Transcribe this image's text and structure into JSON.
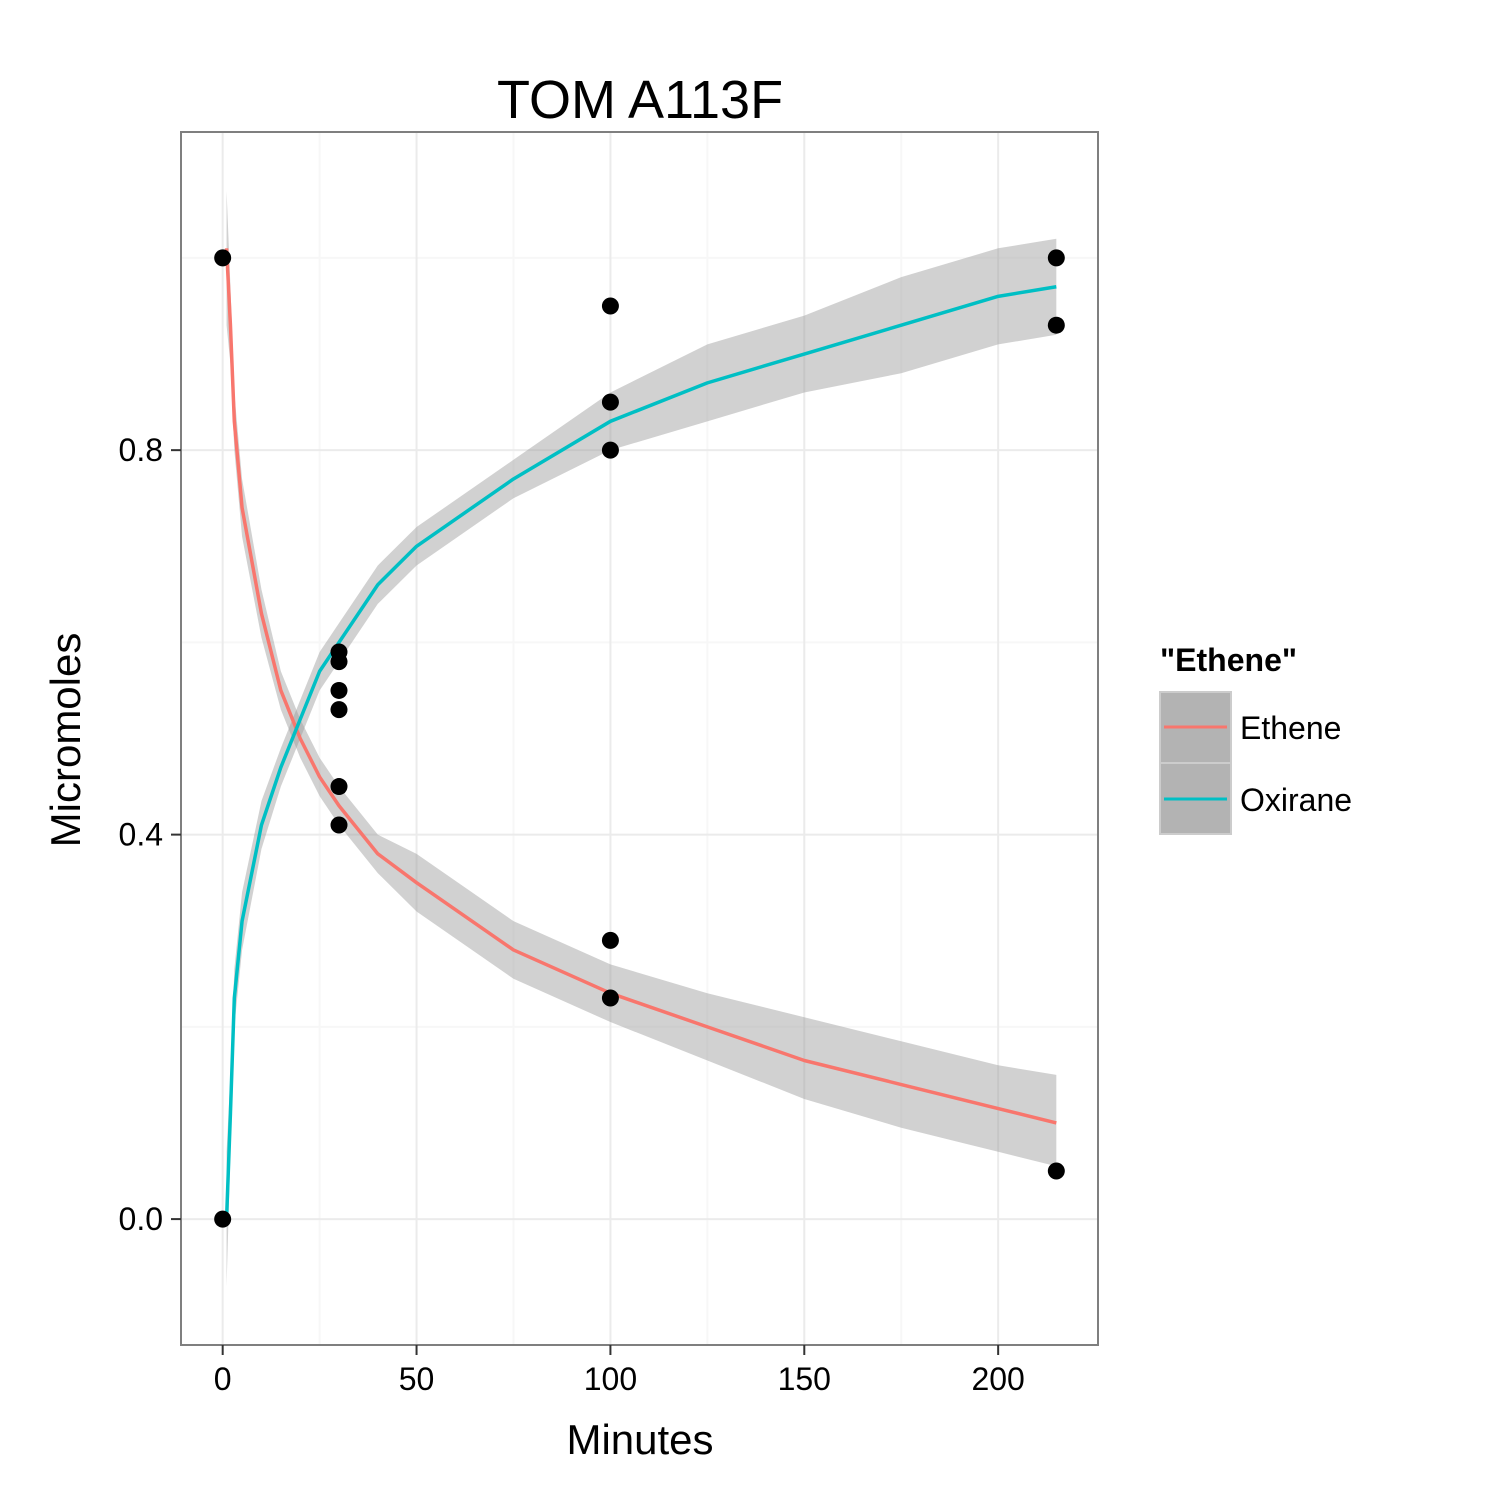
{
  "chart_data": {
    "type": "scatter",
    "title": "TOM A113F",
    "xlabel": "Minutes",
    "ylabel": "Micromoles",
    "xlim": [
      -10.75,
      225.75
    ],
    "ylim": [
      -0.131,
      1.131
    ],
    "x_ticks": [
      0,
      50,
      100,
      150,
      200
    ],
    "x_tick_labels": [
      "0",
      "50",
      "100",
      "150",
      "200"
    ],
    "y_ticks": [
      0.0,
      0.4,
      0.8
    ],
    "y_tick_labels": [
      "0.0",
      "0.4",
      "0.8"
    ],
    "grid": true,
    "points": [
      {
        "x": 0,
        "y": 1.0
      },
      {
        "x": 0,
        "y": 0.0
      },
      {
        "x": 30,
        "y": 0.59
      },
      {
        "x": 30,
        "y": 0.58
      },
      {
        "x": 30,
        "y": 0.55
      },
      {
        "x": 30,
        "y": 0.53
      },
      {
        "x": 30,
        "y": 0.45
      },
      {
        "x": 30,
        "y": 0.41
      },
      {
        "x": 100,
        "y": 0.95
      },
      {
        "x": 100,
        "y": 0.85
      },
      {
        "x": 100,
        "y": 0.8
      },
      {
        "x": 100,
        "y": 0.29
      },
      {
        "x": 100,
        "y": 0.23
      },
      {
        "x": 215,
        "y": 1.0
      },
      {
        "x": 215,
        "y": 0.93
      },
      {
        "x": 215,
        "y": 0.05
      }
    ],
    "series": [
      {
        "name": "Ethene",
        "color": "#F8766D",
        "x": [
          1,
          2,
          3,
          5,
          10,
          15,
          20,
          25,
          30,
          40,
          50,
          75,
          100,
          125,
          150,
          175,
          200,
          215
        ],
        "y": [
          1.01,
          0.93,
          0.83,
          0.74,
          0.63,
          0.55,
          0.5,
          0.46,
          0.43,
          0.38,
          0.35,
          0.28,
          0.235,
          0.2,
          0.165,
          0.14,
          0.115,
          0.1
        ],
        "band_lower": [
          0.93,
          0.89,
          0.8,
          0.71,
          0.605,
          0.53,
          0.48,
          0.44,
          0.41,
          0.36,
          0.32,
          0.25,
          0.205,
          0.165,
          0.125,
          0.095,
          0.07,
          0.055
        ],
        "band_upper": [
          1.07,
          0.97,
          0.86,
          0.77,
          0.655,
          0.57,
          0.52,
          0.48,
          0.45,
          0.4,
          0.38,
          0.31,
          0.265,
          0.235,
          0.21,
          0.185,
          0.16,
          0.15
        ]
      },
      {
        "name": "Oxirane",
        "color": "#00BFC4",
        "x": [
          1,
          2,
          3,
          5,
          10,
          15,
          20,
          25,
          30,
          40,
          50,
          75,
          100,
          125,
          150,
          175,
          200,
          215
        ],
        "y": [
          0.0,
          0.11,
          0.23,
          0.31,
          0.41,
          0.47,
          0.52,
          0.57,
          0.6,
          0.66,
          0.7,
          0.77,
          0.83,
          0.87,
          0.9,
          0.93,
          0.96,
          0.97
        ],
        "band_lower": [
          -0.07,
          0.07,
          0.2,
          0.28,
          0.385,
          0.45,
          0.5,
          0.55,
          0.58,
          0.64,
          0.68,
          0.75,
          0.8,
          0.83,
          0.86,
          0.88,
          0.91,
          0.92
        ],
        "band_upper": [
          0.07,
          0.15,
          0.26,
          0.34,
          0.435,
          0.49,
          0.54,
          0.59,
          0.62,
          0.68,
          0.72,
          0.79,
          0.86,
          0.91,
          0.94,
          0.98,
          1.01,
          1.02
        ]
      }
    ],
    "legend": {
      "title": "\"Ethene\"",
      "position": "right",
      "entries": [
        {
          "label": "Ethene",
          "color": "#F8766D"
        },
        {
          "label": "Oxirane",
          "color": "#00BFC4"
        }
      ]
    },
    "colors": {
      "panel_background": "#ffffff",
      "panel_border": "#7f7f7f",
      "grid_major": "#ebebeb",
      "grid_minor": "#f7f7f7",
      "band": "#999999",
      "point": "#000000",
      "legend_key_background": "#b3b3b3"
    }
  }
}
